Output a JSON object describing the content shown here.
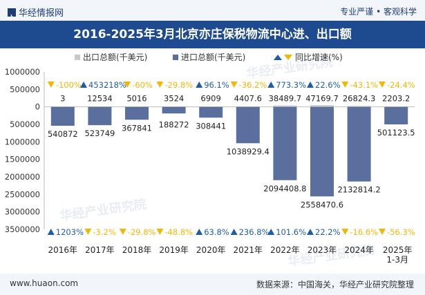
{
  "header": {
    "logo_text": "华经情报网",
    "tagline": "专业严谨 • 客观科学"
  },
  "title": "2016-2025年3月北京亦庄保税物流中心进、出口额",
  "footer": {
    "url": "www.huaon.com",
    "source": "数据来源：中国海关，华经产业研究院整理"
  },
  "colors": {
    "title_bg": "#1e4b8f",
    "export_bar": "#c9c9c9",
    "import_bar": "#5b6f9e",
    "yoy_up": "#1f5ca8",
    "yoy_down": "#f2b705"
  },
  "watermark": "华经产业研究院",
  "chart_data": {
    "type": "bar",
    "categories": [
      "2016年",
      "2017年",
      "2018年",
      "2019年",
      "2020年",
      "2021年",
      "2022年",
      "2023年",
      "2024年",
      "2025年\n1-3月"
    ],
    "series": [
      {
        "name": "出口总额(千美元)",
        "values": [
          3,
          12534,
          5016,
          3524,
          6909,
          4407.6,
          38489.7,
          47169.7,
          26824.3,
          2203.2
        ],
        "labels": [
          "3",
          "12534",
          "5016",
          "3524",
          "6909",
          "4407.6",
          "38489.7",
          "47169.7",
          "26824.3",
          "2203.2"
        ]
      },
      {
        "name": "进口总额(千美元)",
        "values": [
          -540872,
          -523749,
          -367841,
          -188272,
          -308441,
          -1038929.4,
          -2094408.8,
          -2558470.6,
          -2132814.2,
          -501123.5
        ],
        "labels": [
          "540872",
          "523749",
          "367841",
          "188272",
          "308441",
          "1038929.4",
          "2094408.8",
          "2558470.6",
          "2132814.2",
          "501123.5"
        ]
      }
    ],
    "yoy_legend": "同比增速(%)",
    "export_yoy": [
      {
        "label": "-100%",
        "dir": "down"
      },
      {
        "label": "453218%",
        "dir": "up"
      },
      {
        "label": "-60%",
        "dir": "down"
      },
      {
        "label": "-29.8%",
        "dir": "down"
      },
      {
        "label": "96.1%",
        "dir": "up"
      },
      {
        "label": "-36.2%",
        "dir": "down"
      },
      {
        "label": "773.3%",
        "dir": "up"
      },
      {
        "label": "22.6%",
        "dir": "up"
      },
      {
        "label": "-43.1%",
        "dir": "down"
      },
      {
        "label": "-24.4%",
        "dir": "down"
      }
    ],
    "import_yoy": [
      {
        "label": "1203%",
        "dir": "up"
      },
      {
        "label": "-3.2%",
        "dir": "down"
      },
      {
        "label": "-29.8%",
        "dir": "down"
      },
      {
        "label": "-48.8%",
        "dir": "down"
      },
      {
        "label": "63.8%",
        "dir": "up"
      },
      {
        "label": "236.8%",
        "dir": "up"
      },
      {
        "label": "101.6%",
        "dir": "up"
      },
      {
        "label": "22.2%",
        "dir": "up"
      },
      {
        "label": "-16.6%",
        "dir": "down"
      },
      {
        "label": "-56.3%",
        "dir": "down"
      }
    ],
    "yticks": [
      1000000,
      500000,
      0,
      -500000,
      -1000000,
      -1500000,
      -2000000,
      -2500000,
      -3000000,
      -3500000
    ],
    "ytick_labels": [
      "1000000",
      "500000",
      "0",
      "500000",
      "1000000",
      "1500000",
      "2000000",
      "2500000",
      "3000000",
      "3500000"
    ],
    "ylim": [
      -3500000,
      1000000
    ],
    "grid": false,
    "legend_position": "top"
  }
}
